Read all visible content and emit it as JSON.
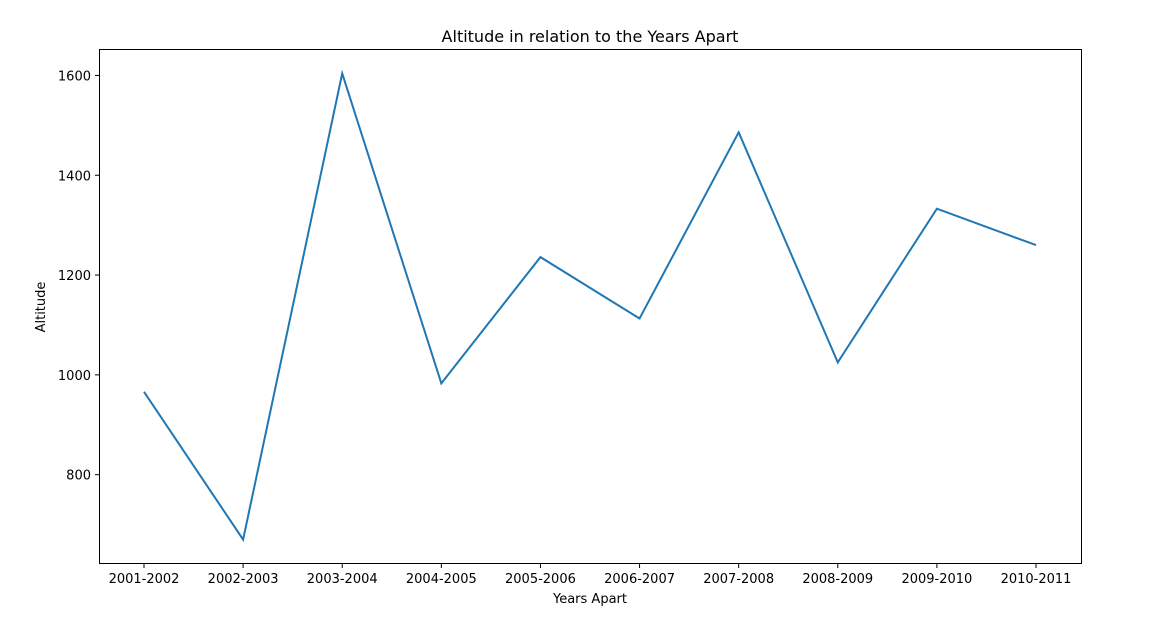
{
  "chart_data": {
    "type": "line",
    "title": "Altitude in relation to the Years Apart",
    "xlabel": "Years Apart",
    "ylabel": "Altitude",
    "categories": [
      "2001-2002",
      "2002-2003",
      "2003-2004",
      "2004-2005",
      "2005-2006",
      "2006-2007",
      "2007-2008",
      "2008-2009",
      "2009-2010",
      "2010-2011"
    ],
    "series": [
      {
        "values": [
          966,
          670,
          1604,
          983,
          1236,
          1113,
          1486,
          1025,
          1333,
          1260
        ],
        "color": "#1f77b4"
      }
    ],
    "ylim": [
      623,
      1651
    ],
    "yticks": [
      800,
      1000,
      1200,
      1400,
      1600
    ],
    "grid": false,
    "legend": "none"
  }
}
